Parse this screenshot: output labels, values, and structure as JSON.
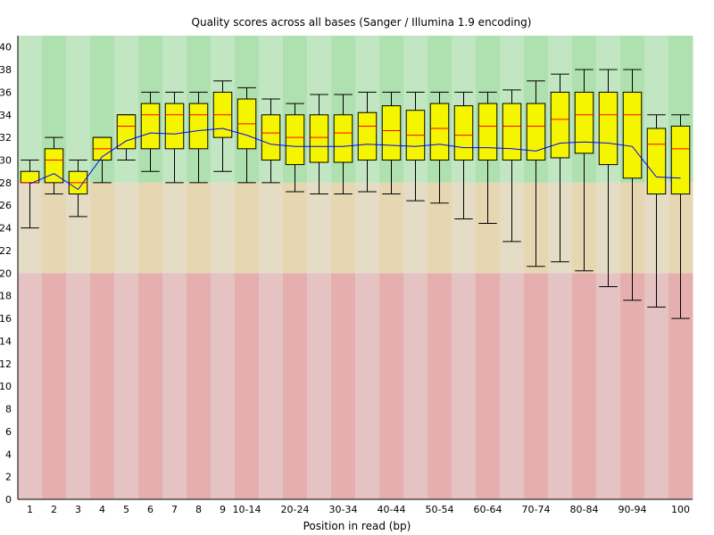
{
  "chart_data": {
    "type": "box",
    "title": "Quality scores across all bases (Sanger / Illumina 1.9 encoding)",
    "xlabel": "Position in read (bp)",
    "ylabel": "",
    "ylim": [
      0,
      41
    ],
    "yticks": [
      0,
      2,
      4,
      6,
      8,
      10,
      12,
      14,
      16,
      18,
      20,
      22,
      24,
      26,
      28,
      30,
      32,
      34,
      36,
      38,
      40
    ],
    "categories": [
      "1",
      "2",
      "3",
      "4",
      "5",
      "6",
      "7",
      "8",
      "9",
      "10-14",
      "15-19",
      "20-24",
      "25-29",
      "30-34",
      "35-39",
      "40-44",
      "45-49",
      "50-54",
      "55-59",
      "60-64",
      "65-69",
      "70-74",
      "75-79",
      "80-84",
      "85-89",
      "90-94",
      "95-99",
      "100"
    ],
    "xtick_labels": [
      "1",
      "2",
      "3",
      "4",
      "5",
      "6",
      "7",
      "8",
      "9",
      "10-14",
      "",
      "20-24",
      "",
      "30-34",
      "",
      "40-44",
      "",
      "50-54",
      "",
      "60-64",
      "",
      "70-74",
      "",
      "80-84",
      "",
      "90-94",
      "",
      "100"
    ],
    "zones": [
      {
        "from": 28,
        "to": 41,
        "name": "good",
        "colors": [
          "#c2e6c2",
          "#afe0af"
        ]
      },
      {
        "from": 20,
        "to": 28,
        "name": "reasonable",
        "colors": [
          "#e5dcc6",
          "#e6d7b2"
        ]
      },
      {
        "from": 0,
        "to": 20,
        "name": "poor",
        "colors": [
          "#e6c3c3",
          "#e6afaf"
        ]
      }
    ],
    "colors": {
      "box": "#f5f500",
      "median": "#ff0000",
      "mean": "#0000ff",
      "whisker": "#000000"
    },
    "boxes": [
      {
        "lower_whisker": 24.0,
        "q1": 28.0,
        "median": 28.0,
        "q3": 29.0,
        "upper_whisker": 30.0,
        "mean": 27.9
      },
      {
        "lower_whisker": 27.0,
        "q1": 28.0,
        "median": 30.0,
        "q3": 31.0,
        "upper_whisker": 32.0,
        "mean": 28.8
      },
      {
        "lower_whisker": 25.0,
        "q1": 27.0,
        "median": 28.0,
        "q3": 29.0,
        "upper_whisker": 30.0,
        "mean": 27.4
      },
      {
        "lower_whisker": 28.0,
        "q1": 30.0,
        "median": 31.0,
        "q3": 32.0,
        "upper_whisker": 32.0,
        "mean": 30.3
      },
      {
        "lower_whisker": 30.0,
        "q1": 31.0,
        "median": 33.0,
        "q3": 34.0,
        "upper_whisker": 34.0,
        "mean": 31.7
      },
      {
        "lower_whisker": 29.0,
        "q1": 31.0,
        "median": 34.0,
        "q3": 35.0,
        "upper_whisker": 36.0,
        "mean": 32.4
      },
      {
        "lower_whisker": 28.0,
        "q1": 31.0,
        "median": 34.0,
        "q3": 35.0,
        "upper_whisker": 36.0,
        "mean": 32.3
      },
      {
        "lower_whisker": 28.0,
        "q1": 31.0,
        "median": 34.0,
        "q3": 35.0,
        "upper_whisker": 36.0,
        "mean": 32.6
      },
      {
        "lower_whisker": 29.0,
        "q1": 32.0,
        "median": 34.0,
        "q3": 36.0,
        "upper_whisker": 37.0,
        "mean": 32.8
      },
      {
        "lower_whisker": 28.0,
        "q1": 31.0,
        "median": 33.2,
        "q3": 35.4,
        "upper_whisker": 36.4,
        "mean": 32.2
      },
      {
        "lower_whisker": 28.0,
        "q1": 30.0,
        "median": 32.4,
        "q3": 34.0,
        "upper_whisker": 35.4,
        "mean": 31.4
      },
      {
        "lower_whisker": 27.2,
        "q1": 29.6,
        "median": 32.0,
        "q3": 34.0,
        "upper_whisker": 35.0,
        "mean": 31.2
      },
      {
        "lower_whisker": 27.0,
        "q1": 29.8,
        "median": 32.0,
        "q3": 34.0,
        "upper_whisker": 35.8,
        "mean": 31.2
      },
      {
        "lower_whisker": 27.0,
        "q1": 29.8,
        "median": 32.4,
        "q3": 34.0,
        "upper_whisker": 35.8,
        "mean": 31.2
      },
      {
        "lower_whisker": 27.2,
        "q1": 30.0,
        "median": 33.0,
        "q3": 34.2,
        "upper_whisker": 36.0,
        "mean": 31.4
      },
      {
        "lower_whisker": 27.0,
        "q1": 30.0,
        "median": 32.6,
        "q3": 34.8,
        "upper_whisker": 36.0,
        "mean": 31.3
      },
      {
        "lower_whisker": 26.4,
        "q1": 30.0,
        "median": 32.2,
        "q3": 34.4,
        "upper_whisker": 36.0,
        "mean": 31.2
      },
      {
        "lower_whisker": 26.2,
        "q1": 30.0,
        "median": 32.8,
        "q3": 35.0,
        "upper_whisker": 36.0,
        "mean": 31.4
      },
      {
        "lower_whisker": 24.8,
        "q1": 30.0,
        "median": 32.2,
        "q3": 34.8,
        "upper_whisker": 36.0,
        "mean": 31.1
      },
      {
        "lower_whisker": 24.4,
        "q1": 30.0,
        "median": 33.0,
        "q3": 35.0,
        "upper_whisker": 36.0,
        "mean": 31.1
      },
      {
        "lower_whisker": 22.8,
        "q1": 30.0,
        "median": 33.0,
        "q3": 35.0,
        "upper_whisker": 36.2,
        "mean": 31.0
      },
      {
        "lower_whisker": 20.6,
        "q1": 30.0,
        "median": 33.0,
        "q3": 35.0,
        "upper_whisker": 37.0,
        "mean": 30.8
      },
      {
        "lower_whisker": 21.0,
        "q1": 30.2,
        "median": 33.6,
        "q3": 36.0,
        "upper_whisker": 37.6,
        "mean": 31.5
      },
      {
        "lower_whisker": 20.2,
        "q1": 30.6,
        "median": 34.0,
        "q3": 36.0,
        "upper_whisker": 38.0,
        "mean": 31.6
      },
      {
        "lower_whisker": 18.8,
        "q1": 29.6,
        "median": 34.0,
        "q3": 36.0,
        "upper_whisker": 38.0,
        "mean": 31.5
      },
      {
        "lower_whisker": 17.6,
        "q1": 28.4,
        "median": 34.0,
        "q3": 36.0,
        "upper_whisker": 38.0,
        "mean": 31.2
      },
      {
        "lower_whisker": 17.0,
        "q1": 27.0,
        "median": 31.4,
        "q3": 32.8,
        "upper_whisker": 34.0,
        "mean": 28.5
      },
      {
        "lower_whisker": 16.0,
        "q1": 27.0,
        "median": 31.0,
        "q3": 33.0,
        "upper_whisker": 34.0,
        "mean": 28.4
      }
    ]
  }
}
